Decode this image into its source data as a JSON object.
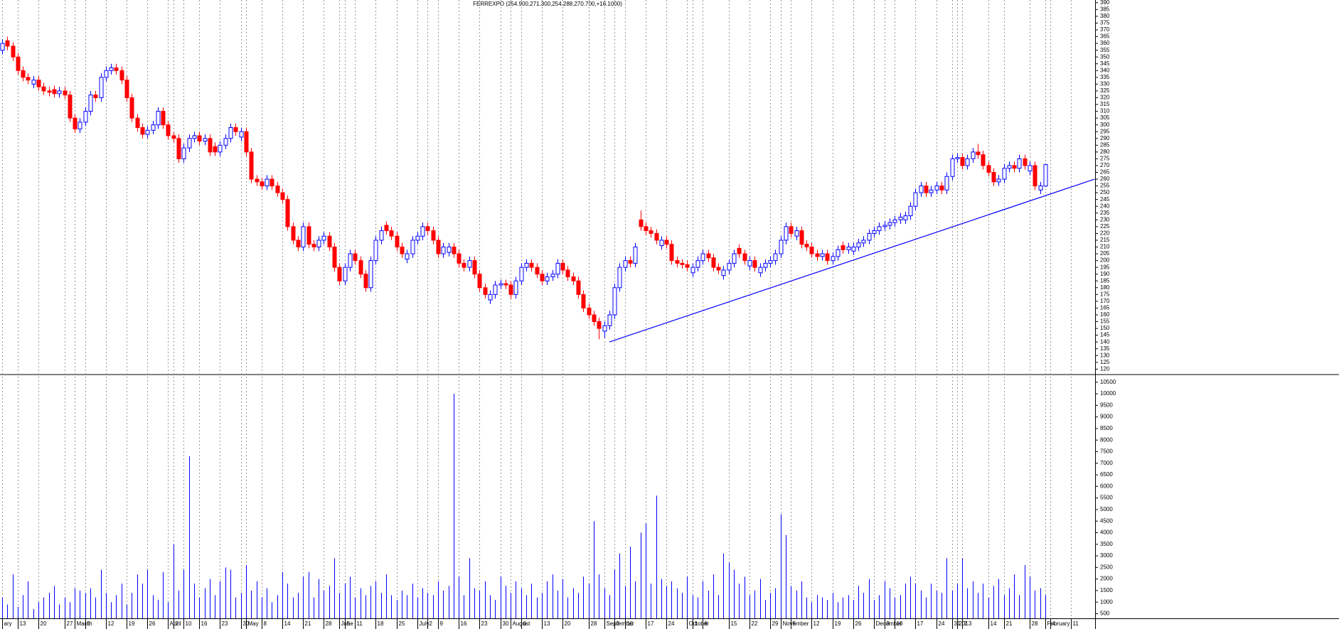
{
  "chart_data": [
    {
      "type": "candlestick",
      "title": "FERREXPO (254.900,271.300,254.288,270.700,+16.1000)",
      "up_color": "#0000ff",
      "down_color": "#ff0000",
      "ylim": [
        116,
        392
      ],
      "yticks": [
        120,
        125,
        130,
        135,
        140,
        145,
        150,
        155,
        160,
        165,
        170,
        175,
        180,
        185,
        190,
        195,
        200,
        205,
        210,
        215,
        220,
        225,
        230,
        235,
        240,
        245,
        250,
        255,
        260,
        265,
        270,
        275,
        280,
        285,
        290,
        295,
        300,
        305,
        310,
        315,
        320,
        325,
        330,
        335,
        340,
        345,
        350,
        355,
        360,
        365,
        370,
        375,
        380,
        385,
        390
      ],
      "open": [
        355,
        362,
        358,
        350,
        340,
        335,
        330,
        333,
        328,
        325,
        326,
        323,
        325,
        322,
        305,
        297,
        302,
        310,
        322,
        320,
        335,
        340,
        342,
        340,
        333,
        320,
        305,
        298,
        293,
        296,
        300,
        310,
        300,
        292,
        290,
        275,
        283,
        290,
        292,
        288,
        290,
        284,
        280,
        285,
        290,
        298,
        291,
        295,
        280,
        260,
        258,
        255,
        260,
        255,
        250,
        245,
        225,
        215,
        210,
        225,
        212,
        210,
        215,
        218,
        210,
        195,
        185,
        195,
        205,
        200,
        190,
        180,
        200,
        215,
        226,
        222,
        218,
        210,
        201,
        205,
        215,
        218,
        225,
        222,
        215,
        205,
        206,
        210,
        205,
        198,
        195,
        200,
        190,
        180,
        171,
        175,
        182,
        183,
        182,
        175,
        185,
        195,
        198,
        195,
        190,
        185,
        188,
        190,
        198,
        193,
        188,
        185,
        175,
        165,
        160,
        155,
        148,
        152,
        160,
        180,
        195,
        200,
        198,
        230,
        225,
        222,
        220,
        211,
        215,
        212,
        200,
        198,
        197,
        191,
        195,
        200,
        205,
        202,
        195,
        189,
        193,
        198,
        209,
        205,
        196,
        200,
        191,
        195,
        198,
        200,
        205,
        215,
        225,
        218,
        222,
        212,
        210,
        205,
        203,
        205,
        200,
        203,
        211,
        208,
        207,
        210,
        213,
        215,
        220,
        222,
        225,
        226,
        228,
        230,
        230,
        233,
        240,
        250,
        255,
        250,
        252,
        255,
        252,
        262,
        275,
        276,
        270,
        275,
        280,
        278,
        270,
        265,
        258,
        260,
        268,
        270,
        268,
        275,
        266,
        270,
        252,
        254.9
      ],
      "high": [
        363,
        365,
        361,
        353,
        343,
        338,
        336,
        336,
        331,
        328,
        329,
        328,
        328,
        325,
        308,
        305,
        313,
        325,
        325,
        338,
        343,
        345,
        345,
        343,
        336,
        323,
        308,
        301,
        299,
        303,
        313,
        313,
        303,
        295,
        293,
        286,
        293,
        295,
        295,
        293,
        293,
        287,
        288,
        293,
        301,
        301,
        298,
        298,
        283,
        263,
        261,
        263,
        263,
        258,
        253,
        248,
        228,
        218,
        228,
        228,
        215,
        218,
        221,
        221,
        213,
        198,
        198,
        208,
        208,
        203,
        193,
        203,
        218,
        225,
        229,
        225,
        221,
        213,
        208,
        218,
        221,
        228,
        228,
        225,
        218,
        213,
        213,
        213,
        208,
        201,
        203,
        203,
        193,
        183,
        178,
        185,
        186,
        186,
        185,
        188,
        198,
        201,
        201,
        198,
        193,
        191,
        193,
        201,
        201,
        196,
        191,
        188,
        178,
        168,
        163,
        158,
        155,
        163,
        183,
        198,
        203,
        203,
        213,
        237,
        228,
        225,
        223,
        218,
        218,
        215,
        203,
        201,
        200,
        198,
        203,
        208,
        208,
        205,
        198,
        196,
        201,
        208,
        212,
        208,
        203,
        203,
        198,
        201,
        203,
        208,
        218,
        228,
        228,
        225,
        225,
        215,
        213,
        208,
        208,
        208,
        206,
        211,
        214,
        213,
        213,
        216,
        218,
        223,
        225,
        228,
        229,
        231,
        233,
        235,
        236,
        243,
        253,
        258,
        258,
        255,
        258,
        258,
        265,
        278,
        279,
        279,
        278,
        283,
        286,
        281,
        273,
        268,
        263,
        271,
        273,
        273,
        278,
        278,
        273,
        273,
        258,
        271.3
      ],
      "low": [
        352,
        355,
        347,
        337,
        332,
        330,
        327,
        325,
        322,
        321,
        320,
        320,
        319,
        302,
        294,
        294,
        299,
        307,
        317,
        317,
        332,
        337,
        337,
        330,
        317,
        302,
        295,
        290,
        290,
        293,
        297,
        297,
        289,
        287,
        272,
        272,
        280,
        287,
        285,
        285,
        277,
        277,
        277,
        282,
        287,
        292,
        288,
        277,
        257,
        255,
        252,
        252,
        252,
        247,
        242,
        222,
        212,
        207,
        207,
        209,
        207,
        207,
        212,
        207,
        192,
        182,
        182,
        192,
        197,
        187,
        177,
        177,
        197,
        212,
        219,
        215,
        207,
        202,
        198,
        202,
        212,
        215,
        219,
        212,
        202,
        202,
        203,
        202,
        195,
        192,
        192,
        187,
        177,
        172,
        168,
        172,
        179,
        179,
        172,
        172,
        182,
        192,
        192,
        187,
        182,
        182,
        185,
        187,
        190,
        185,
        182,
        172,
        162,
        157,
        152,
        142,
        143,
        149,
        157,
        177,
        192,
        195,
        195,
        222,
        219,
        217,
        212,
        208,
        209,
        197,
        195,
        194,
        192,
        188,
        192,
        197,
        199,
        192,
        190,
        186,
        190,
        195,
        202,
        197,
        193,
        192,
        188,
        192,
        195,
        197,
        202,
        212,
        217,
        215,
        209,
        207,
        202,
        200,
        200,
        197,
        197,
        200,
        205,
        205,
        204,
        207,
        210,
        212,
        217,
        219,
        222,
        223,
        225,
        227,
        227,
        230,
        237,
        247,
        247,
        247,
        249,
        249,
        249,
        259,
        272,
        267,
        267,
        272,
        275,
        267,
        262,
        255,
        255,
        257,
        265,
        265,
        265,
        267,
        263,
        252,
        249,
        254.288
      ],
      "close": [
        360,
        358,
        350,
        340,
        335,
        333,
        333,
        328,
        325,
        324,
        323,
        325,
        322,
        305,
        297,
        302,
        310,
        322,
        320,
        335,
        340,
        342,
        340,
        333,
        320,
        305,
        298,
        293,
        296,
        300,
        310,
        300,
        292,
        290,
        275,
        283,
        290,
        292,
        288,
        290,
        280,
        280,
        285,
        290,
        298,
        295,
        295,
        280,
        260,
        258,
        255,
        260,
        255,
        250,
        245,
        225,
        215,
        210,
        225,
        212,
        210,
        215,
        218,
        210,
        195,
        185,
        195,
        205,
        200,
        190,
        180,
        200,
        215,
        222,
        222,
        218,
        210,
        205,
        205,
        215,
        218,
        225,
        222,
        215,
        205,
        210,
        210,
        205,
        198,
        195,
        200,
        190,
        180,
        175,
        175,
        182,
        183,
        182,
        175,
        185,
        195,
        198,
        195,
        190,
        185,
        188,
        190,
        198,
        193,
        188,
        185,
        175,
        165,
        160,
        155,
        150,
        152,
        160,
        180,
        195,
        200,
        198,
        210,
        225,
        222,
        220,
        215,
        215,
        212,
        200,
        198,
        197,
        195,
        195,
        200,
        205,
        202,
        195,
        193,
        193,
        198,
        205,
        205,
        200,
        200,
        195,
        195,
        198,
        200,
        205,
        215,
        225,
        220,
        222,
        212,
        210,
        205,
        203,
        205,
        200,
        203,
        208,
        208,
        210,
        210,
        213,
        215,
        220,
        222,
        225,
        226,
        228,
        230,
        232,
        233,
        240,
        250,
        255,
        250,
        252,
        255,
        252,
        262,
        275,
        276,
        270,
        275,
        280,
        278,
        270,
        265,
        258,
        260,
        268,
        270,
        268,
        275,
        270,
        270,
        255,
        255,
        270.7
      ],
      "trendline": {
        "x": [
          117,
          210.5
        ],
        "values": [
          140,
          260
        ],
        "color": "#0000ff"
      }
    },
    {
      "type": "bar",
      "color": "#0000ff",
      "grid": "x",
      "ylim": [
        300,
        10800
      ],
      "yticks": [
        500,
        1000,
        1500,
        2000,
        2500,
        3000,
        3500,
        4000,
        4500,
        5000,
        5500,
        6000,
        6500,
        7000,
        7500,
        8000,
        8500,
        9000,
        9500,
        10000,
        10500
      ],
      "xlim": [
        -0.4,
        210.6
      ],
      "xticks": [
        {
          "value": 0,
          "label": "ary"
        },
        {
          "value": 3,
          "label": "13"
        },
        {
          "value": 7,
          "label": "20"
        },
        {
          "value": 12,
          "label": "27"
        },
        {
          "value": 14,
          "label": "March"
        },
        {
          "value": 16,
          "label": "5"
        },
        {
          "value": 20,
          "label": "12"
        },
        {
          "value": 24,
          "label": "19"
        },
        {
          "value": 28,
          "label": "26"
        },
        {
          "value": 32,
          "label": "April"
        },
        {
          "value": 33,
          "label": "2"
        },
        {
          "value": 35,
          "label": "10"
        },
        {
          "value": 38,
          "label": "16"
        },
        {
          "value": 42,
          "label": "23"
        },
        {
          "value": 46,
          "label": "30"
        },
        {
          "value": 47,
          "label": "May"
        },
        {
          "value": 50,
          "label": "8"
        },
        {
          "value": 54,
          "label": "14"
        },
        {
          "value": 58,
          "label": "21"
        },
        {
          "value": 62,
          "label": "28"
        },
        {
          "value": 65,
          "label": "June"
        },
        {
          "value": 66,
          "label": "5"
        },
        {
          "value": 68,
          "label": "11"
        },
        {
          "value": 72,
          "label": "18"
        },
        {
          "value": 76,
          "label": "25"
        },
        {
          "value": 80,
          "label": "July"
        },
        {
          "value": 82,
          "label": "2"
        },
        {
          "value": 84,
          "label": "9"
        },
        {
          "value": 88,
          "label": "16"
        },
        {
          "value": 92,
          "label": "23"
        },
        {
          "value": 96,
          "label": "30"
        },
        {
          "value": 98,
          "label": "August"
        },
        {
          "value": 100,
          "label": "6"
        },
        {
          "value": 104,
          "label": "13"
        },
        {
          "value": 108,
          "label": "20"
        },
        {
          "value": 113,
          "label": "28"
        },
        {
          "value": 116,
          "label": "September"
        },
        {
          "value": 118,
          "label": "3"
        },
        {
          "value": 120,
          "label": "10"
        },
        {
          "value": 124,
          "label": "17"
        },
        {
          "value": 128,
          "label": "24"
        },
        {
          "value": 132,
          "label": "October"
        },
        {
          "value": 133,
          "label": "1"
        },
        {
          "value": 135,
          "label": "8"
        },
        {
          "value": 140,
          "label": "15"
        },
        {
          "value": 144,
          "label": "22"
        },
        {
          "value": 148,
          "label": "29"
        },
        {
          "value": 150,
          "label": "November"
        },
        {
          "value": 152,
          "label": "5"
        },
        {
          "value": 156,
          "label": "12"
        },
        {
          "value": 160,
          "label": "19"
        },
        {
          "value": 164,
          "label": "26"
        },
        {
          "value": 168,
          "label": "December"
        },
        {
          "value": 170,
          "label": "3"
        },
        {
          "value": 172,
          "label": "10"
        },
        {
          "value": 176,
          "label": "17"
        },
        {
          "value": 180,
          "label": "24"
        },
        {
          "value": 183,
          "label": "31"
        },
        {
          "value": 184,
          "label": "2013"
        },
        {
          "value": 185,
          "label": "7"
        },
        {
          "value": 190,
          "label": "14"
        },
        {
          "value": 193,
          "label": "21"
        },
        {
          "value": 198,
          "label": "28"
        },
        {
          "value": 201,
          "label": "February"
        },
        {
          "value": 202,
          "label": "4"
        },
        {
          "value": 206,
          "label": "11"
        }
      ],
      "values": [
        1200,
        900,
        2200,
        800,
        1300,
        1900,
        700,
        1000,
        1200,
        1400,
        1700,
        900,
        1200,
        1000,
        1600,
        1500,
        1400,
        1600,
        1200,
        2400,
        1400,
        1000,
        1300,
        1800,
        900,
        1400,
        2200,
        1800,
        2400,
        1300,
        1100,
        2300,
        1000,
        3500,
        1500,
        2400,
        7300,
        1800,
        1200,
        1600,
        2000,
        1300,
        1900,
        2500,
        2400,
        1200,
        1400,
        2600,
        1500,
        1900,
        1200,
        1600,
        1000,
        1300,
        2300,
        1800,
        1200,
        1400,
        2100,
        2300,
        1200,
        2000,
        1500,
        1700,
        2900,
        1400,
        1800,
        2100,
        1200,
        1600,
        1300,
        1700,
        1900,
        1400,
        2200,
        1300,
        1100,
        1500,
        1300,
        1800,
        1200,
        1600,
        1400,
        1300,
        1900,
        1500,
        1700,
        10000,
        2100,
        1300,
        2900,
        1600,
        1500,
        1900,
        1300,
        1100,
        2100,
        1700,
        1400,
        1900,
        1600,
        1300,
        1800,
        1200,
        1400,
        1900,
        2200,
        1500,
        2000,
        1200,
        1600,
        1400,
        2100,
        1800,
        4500,
        2200,
        1600,
        1300,
        2400,
        3100,
        1700,
        3400,
        1900,
        4000,
        4400,
        1800,
        5600,
        2000,
        1700,
        1900,
        1600,
        1400,
        2100,
        1300,
        1200,
        1900,
        1500,
        2200,
        1300,
        3100,
        2700,
        2400,
        1800,
        2100,
        1300,
        1500,
        2000,
        1100,
        1400,
        1600,
        4800,
        3900,
        1700,
        1500,
        1900,
        1200,
        1000,
        1300,
        1200,
        1100,
        1400,
        1000,
        1200,
        1300,
        1100,
        1700,
        1400,
        2000,
        1100,
        1300,
        1900,
        1600,
        1200,
        1300,
        1800,
        2100,
        1800,
        1500,
        1200,
        1800,
        1500,
        1400,
        2900,
        1500,
        1800,
        2900,
        1600,
        1900,
        1400,
        1800,
        1200,
        1700,
        2000,
        1300,
        1600,
        2200,
        1300,
        2600,
        2100,
        1500,
        1600,
        1300
      ]
    }
  ]
}
